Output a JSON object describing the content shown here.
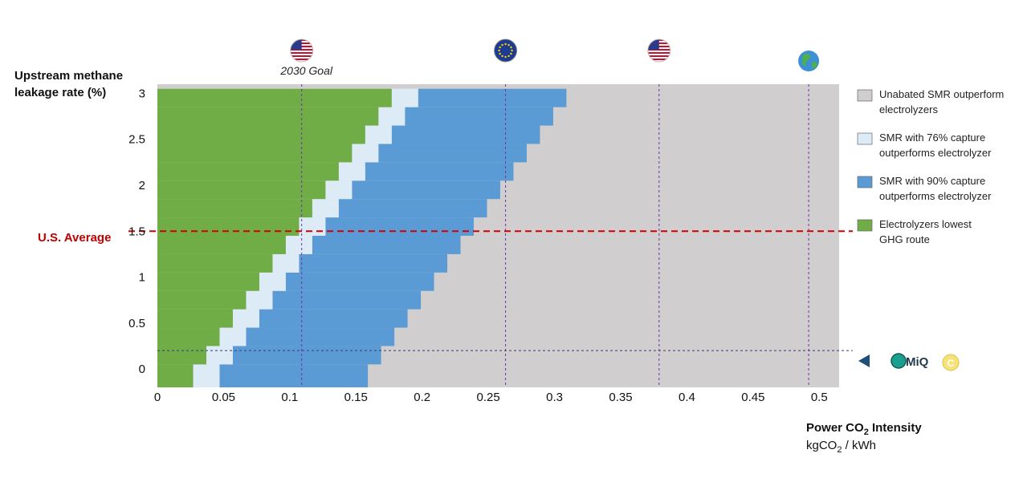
{
  "chart_data": {
    "type": "heatmap",
    "y_axis_title_line1": "Upstream methane",
    "y_axis_title_line2": "leakage rate (%)",
    "x_axis_title_main": "Power CO",
    "x_axis_title_sub": "2",
    "x_axis_title_rest": " Intensity",
    "x_unit_main": "kgCO",
    "x_unit_sub": "2",
    "x_unit_rest": " / kWh",
    "xlim": [
      0,
      0.515
    ],
    "ylim": [
      -0.2,
      3.1
    ],
    "x_ticks": [
      "0",
      "0.05",
      "0.1",
      "0.15",
      "0.2",
      "0.25",
      "0.3",
      "0.35",
      "0.4",
      "0.45",
      "0.5"
    ],
    "y_ticks": [
      "0",
      "0.5",
      "1",
      "1.5",
      "2",
      "2.5",
      "3"
    ],
    "colors": {
      "grey": "#d0cece",
      "light_blue": "#ddebf7",
      "blue": "#5b9bd5",
      "green": "#70ad47",
      "us_average_line": "#d00000",
      "policy_lines": "#7030a0"
    },
    "region_boundaries": {
      "y_levels": [
        -0.2,
        0.05,
        0.25,
        0.45,
        0.65,
        0.85,
        1.05,
        1.25,
        1.45,
        1.65,
        1.85,
        2.05,
        2.25,
        2.45,
        2.65,
        2.85,
        3.05
      ],
      "green_to_light_blue_x": [
        0.027,
        0.037,
        0.047,
        0.057,
        0.067,
        0.077,
        0.087,
        0.097,
        0.107,
        0.117,
        0.127,
        0.137,
        0.147,
        0.157,
        0.167,
        0.177,
        0.187
      ],
      "light_blue_to_blue_x": [
        0.047,
        0.057,
        0.067,
        0.077,
        0.087,
        0.097,
        0.107,
        0.117,
        0.127,
        0.137,
        0.147,
        0.157,
        0.167,
        0.177,
        0.187,
        0.197,
        0.207
      ],
      "blue_to_grey_x": [
        0.159,
        0.169,
        0.179,
        0.189,
        0.199,
        0.209,
        0.219,
        0.229,
        0.239,
        0.249,
        0.259,
        0.269,
        0.279,
        0.289,
        0.299,
        0.309,
        0.319
      ]
    },
    "us_average": {
      "label": "U.S. Average",
      "y": 1.5
    },
    "miq_line": {
      "y": 0.2,
      "label": "MiQ",
      "badge_letter": "C"
    },
    "policy_markers": [
      {
        "x": 0.109,
        "icon": "us-flag-icon",
        "label": "2030 Goal"
      },
      {
        "x": 0.263,
        "icon": "eu-flag-icon",
        "label": ""
      },
      {
        "x": 0.379,
        "icon": "us-flag-icon",
        "label": ""
      },
      {
        "x": 0.492,
        "icon": "globe-icon",
        "label": ""
      }
    ],
    "legend": [
      {
        "color_key": "grey",
        "line1": "Unabated SMR outperform",
        "line2": "electrolyzers"
      },
      {
        "color_key": "light_blue",
        "line1": "SMR with 76% capture",
        "line2": "outperforms electrolyzer"
      },
      {
        "color_key": "blue",
        "line1": "SMR with 90% capture",
        "line2": "outperforms electrolyzer"
      },
      {
        "color_key": "green",
        "line1": "Electrolyzers lowest",
        "line2": "GHG route"
      }
    ]
  }
}
